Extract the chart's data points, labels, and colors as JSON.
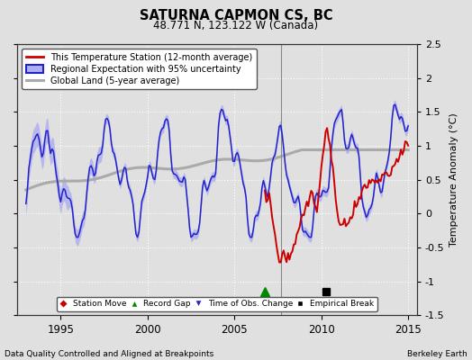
{
  "title": "SATURNA CAPMON CS, BC",
  "subtitle": "48.771 N, 123.122 W (Canada)",
  "ylabel": "Temperature Anomaly (°C)",
  "xlabel_left": "Data Quality Controlled and Aligned at Breakpoints",
  "xlabel_right": "Berkeley Earth",
  "ylim": [
    -1.5,
    2.5
  ],
  "xlim": [
    1992.5,
    2015.5
  ],
  "xticks": [
    1995,
    2000,
    2005,
    2010,
    2015
  ],
  "yticks_right": [
    -1.5,
    -1.0,
    -0.5,
    0.0,
    0.5,
    1.0,
    1.5,
    2.0,
    2.5
  ],
  "bg_color": "#e0e0e0",
  "plot_bg_color": "#e0e0e0",
  "grid_color": "white",
  "vertical_line_x": 2007.67,
  "marker_green_x": 2006.75,
  "marker_black_x": 2010.25,
  "marker_y": -1.15,
  "red_line_color": "#cc0000",
  "blue_line_color": "#2222cc",
  "blue_fill_color": "#b0b0ee",
  "gray_line_color": "#aaaaaa",
  "legend_items": [
    "This Temperature Station (12-month average)",
    "Regional Expectation with 95% uncertainty",
    "Global Land (5-year average)"
  ],
  "legend_marker_labels": [
    "Station Move",
    "Record Gap",
    "Time of Obs. Change",
    "Empirical Break"
  ]
}
